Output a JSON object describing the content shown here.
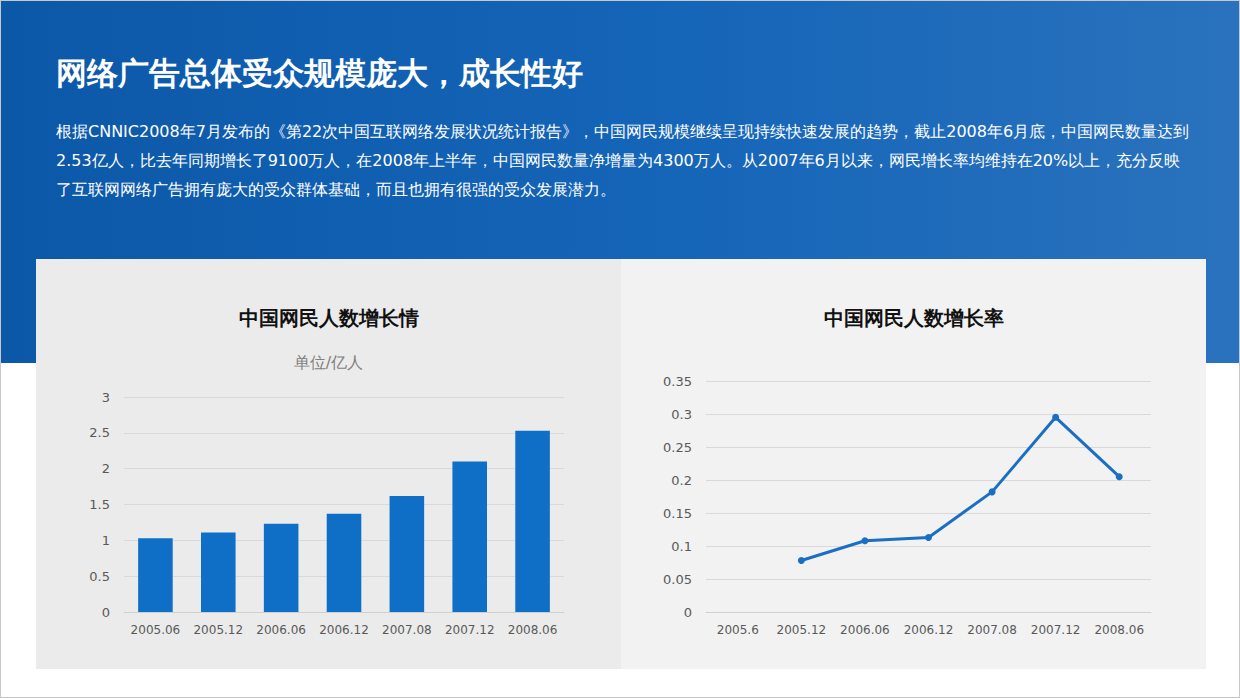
{
  "header": {
    "title": "网络广告总体受众规模庞大，成长性好",
    "text": "根据CNNIC2008年7月发布的《第22次中国互联网络发展状况统计报告》，中国网民规模继续呈现持续快速发展的趋势，截止2008年6月底，中国网民数量达到2.53亿人，比去年同期增长了9100万人，在2008年上半年，中国网民数量净增量为4300万人。从2007年6月以来，网民增长率均维持在20%以上，充分反映了互联网网络广告拥有庞大的受众群体基础，而且也拥有很强的受众发展潜力。"
  },
  "chart_data": [
    {
      "type": "bar",
      "title": "中国网民人数增长情",
      "subtitle": "单位/亿人",
      "categories": [
        "2005.06",
        "2005.12",
        "2006.06",
        "2006.12",
        "2007.08",
        "2007.12",
        "2008.06"
      ],
      "values": [
        1.03,
        1.11,
        1.23,
        1.37,
        1.62,
        2.1,
        2.53
      ],
      "color": "#0f6fc6",
      "ylim": [
        0,
        3
      ],
      "yticks": [
        0,
        0.5,
        1,
        1.5,
        2,
        2.5,
        3
      ],
      "grid": true
    },
    {
      "type": "line",
      "title": "中国网民人数增长率",
      "categories": [
        "2005.6",
        "2005.12",
        "2006.06",
        "2006.12",
        "2007.08",
        "2007.12",
        "2008.06"
      ],
      "values": [
        null,
        0.078,
        0.108,
        0.113,
        0.182,
        0.295,
        0.205
      ],
      "color": "#1a6fc4",
      "marker": "circle",
      "ylim": [
        0,
        0.35
      ],
      "yticks": [
        0,
        0.05,
        0.1,
        0.15,
        0.2,
        0.25,
        0.3,
        0.35
      ],
      "grid": true
    }
  ]
}
